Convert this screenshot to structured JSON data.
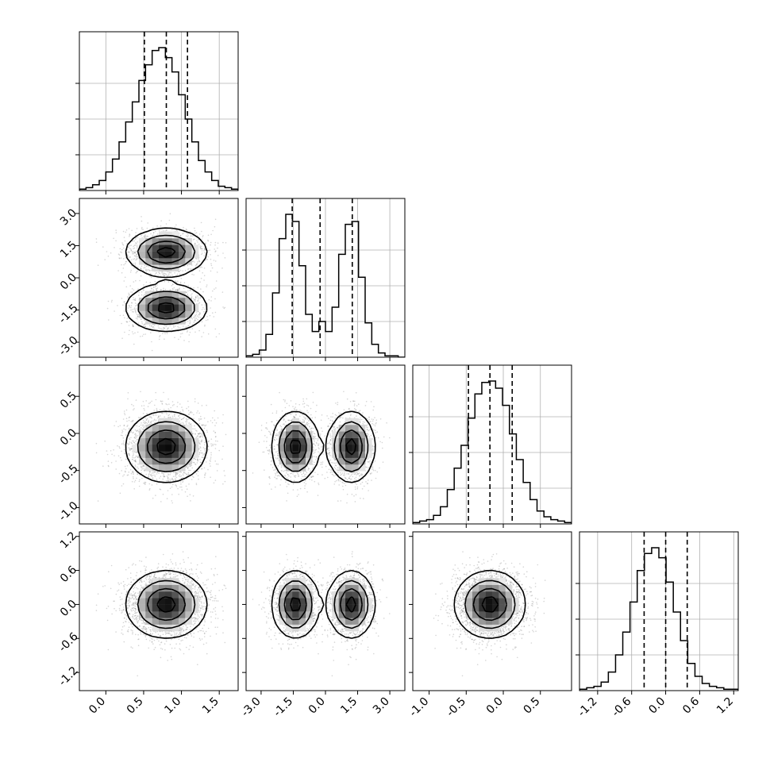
{
  "chart_data": {
    "type": "corner",
    "parameters": 4,
    "ranges": [
      [
        -0.35,
        1.75
      ],
      [
        -3.7,
        3.7
      ],
      [
        -1.22,
        0.92
      ],
      [
        -1.52,
        1.28
      ]
    ],
    "ticks": [
      [
        "0.0",
        "0.5",
        "1.0",
        "1.5"
      ],
      [
        "-3.0",
        "-1.5",
        "0.0",
        "1.5",
        "3.0"
      ],
      [
        "-1.0",
        "-0.5",
        "0.0",
        "0.5"
      ],
      [
        "-1.2",
        "-0.6",
        "0.0",
        "0.6",
        "1.2"
      ]
    ],
    "tick_values": [
      [
        0.0,
        0.5,
        1.0,
        1.5
      ],
      [
        -3.0,
        -1.5,
        0.0,
        1.5,
        3.0
      ],
      [
        -1.0,
        -0.5,
        0.0,
        0.5
      ],
      [
        -1.2,
        -0.6,
        0.0,
        0.6,
        1.2
      ]
    ],
    "quantiles": [
      [
        0.51,
        0.8,
        1.08
      ],
      [
        -1.55,
        -0.25,
        1.25
      ],
      [
        -0.47,
        -0.18,
        0.12
      ],
      [
        -0.38,
        0.0,
        0.38
      ]
    ],
    "histograms": [
      [
        0.01,
        0.02,
        0.04,
        0.07,
        0.13,
        0.22,
        0.34,
        0.48,
        0.62,
        0.77,
        0.88,
        0.98,
        1.0,
        0.93,
        0.83,
        0.67,
        0.5,
        0.34,
        0.21,
        0.13,
        0.07,
        0.03,
        0.02,
        0.01
      ],
      [
        0.01,
        0.02,
        0.05,
        0.16,
        0.45,
        0.83,
        1.0,
        0.95,
        0.64,
        0.3,
        0.18,
        0.25,
        0.18,
        0.35,
        0.72,
        0.93,
        0.95,
        0.56,
        0.24,
        0.09,
        0.03,
        0.01,
        0.01,
        0.0
      ],
      [
        0.01,
        0.02,
        0.03,
        0.06,
        0.12,
        0.24,
        0.39,
        0.55,
        0.74,
        0.91,
        0.99,
        1.0,
        0.95,
        0.83,
        0.63,
        0.45,
        0.29,
        0.17,
        0.09,
        0.05,
        0.03,
        0.02,
        0.01
      ],
      [
        0.01,
        0.02,
        0.03,
        0.06,
        0.13,
        0.25,
        0.41,
        0.62,
        0.84,
        0.96,
        1.0,
        0.93,
        0.76,
        0.55,
        0.35,
        0.19,
        0.1,
        0.05,
        0.03,
        0.02,
        0.01,
        0.01
      ]
    ],
    "dimensions": [
      {
        "center": 0.8,
        "sd": 0.27
      },
      {
        "modes": [
          -1.4,
          1.2
        ],
        "sd": 0.55
      },
      {
        "center": -0.18,
        "sd": 0.24
      },
      {
        "center": 0.0,
        "sd": 0.3
      }
    ],
    "grid": true
  }
}
